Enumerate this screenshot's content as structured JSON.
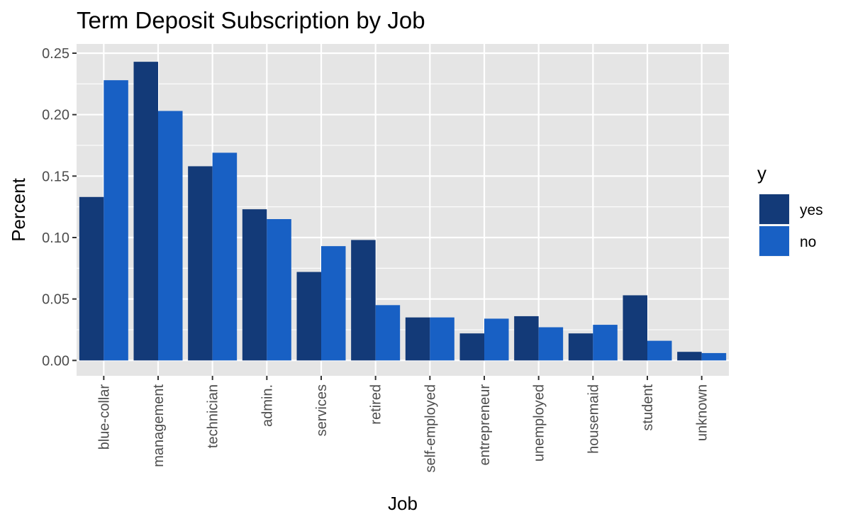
{
  "chart_data": {
    "type": "bar",
    "title": "Term Deposit Subscription by Job",
    "xlabel": "Job",
    "ylabel": "Percent",
    "categories": [
      "blue-collar",
      "management",
      "technician",
      "admin.",
      "services",
      "retired",
      "self-employed",
      "entrepreneur",
      "unemployed",
      "housemaid",
      "student",
      "unknown"
    ],
    "series": [
      {
        "name": "yes",
        "color": "#133a78",
        "values": [
          0.133,
          0.243,
          0.158,
          0.123,
          0.072,
          0.098,
          0.035,
          0.022,
          0.036,
          0.022,
          0.053,
          0.007
        ]
      },
      {
        "name": "no",
        "color": "#1860c4",
        "values": [
          0.228,
          0.203,
          0.169,
          0.115,
          0.093,
          0.045,
          0.035,
          0.034,
          0.027,
          0.029,
          0.016,
          0.006
        ]
      }
    ],
    "ylim": [
      -0.0125,
      0.2575
    ],
    "yticks": [
      "0.00",
      "0.05",
      "0.10",
      "0.15",
      "0.20",
      "0.25"
    ],
    "ytick_values": [
      0,
      0.05,
      0.1,
      0.15,
      0.2,
      0.25
    ],
    "legend": {
      "title": "y",
      "position": "right"
    },
    "grid": true,
    "panel_background": "#e5e5e5",
    "grid_color": "#ffffff"
  }
}
